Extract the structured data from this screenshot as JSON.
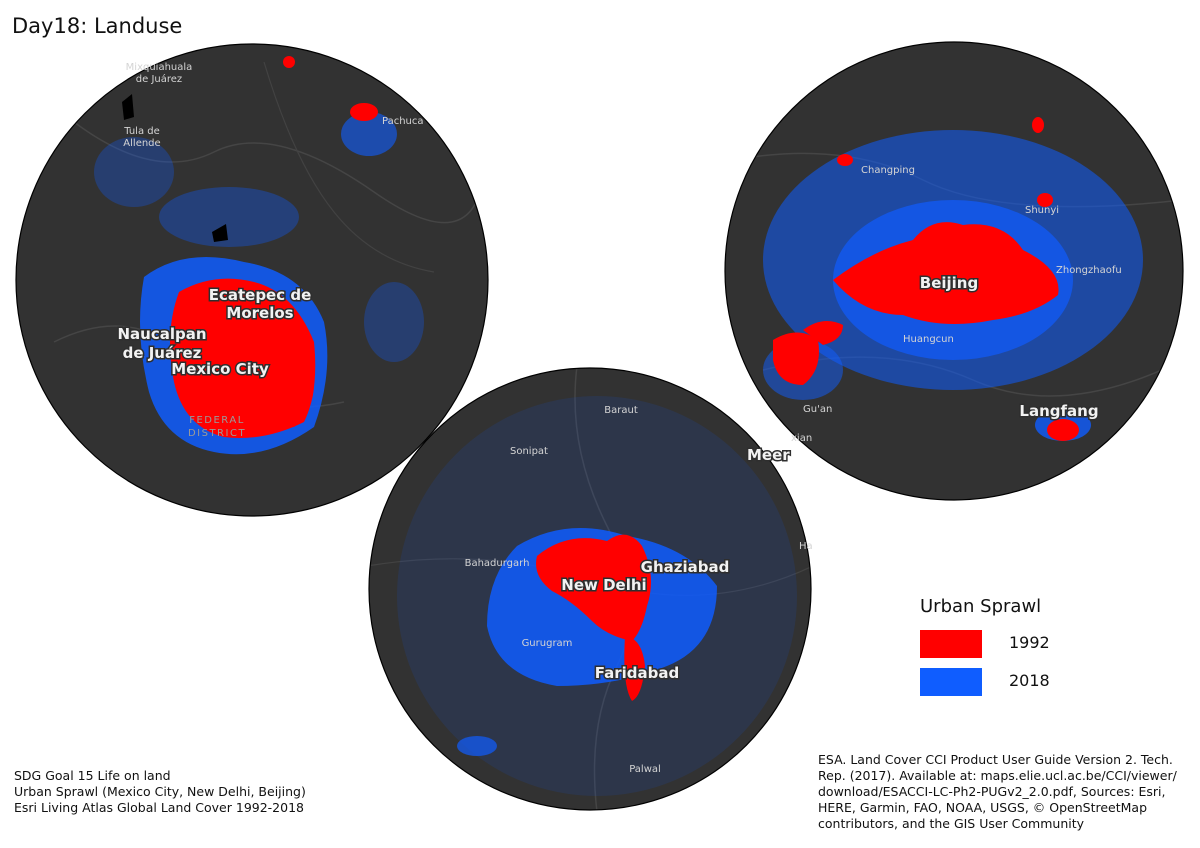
{
  "title": "Day18: Landuse",
  "colors": {
    "y1992": "#ff0000",
    "y2018": "#0f5dff",
    "basemap": "#323232",
    "border": "#000000"
  },
  "maps": {
    "mexico": {
      "labels": {
        "mixquiahuala_1": "Mixquiahuala",
        "mixquiahuala_2": "de Juárez",
        "tula_1": "Tula de",
        "tula_2": "Allende",
        "pachuca": "Pachuca",
        "ecatepec_1": "Ecatepec de",
        "ecatepec_2": "Morelos",
        "naucalpan_1": "Naucalpan",
        "naucalpan_2": "de Juárez",
        "mexico_city": "Mexico City",
        "federal_1": "FEDERAL",
        "federal_2": "DISTRICT"
      }
    },
    "beijing": {
      "labels": {
        "changping": "Changping",
        "shunyi": "Shunyi",
        "beijing": "Beijing",
        "zhongzhaofu": "Zhongzhaofu",
        "huangcun": "Huangcun",
        "guan": "Gu'an",
        "xian": "xian",
        "langfang": "Langfang"
      }
    },
    "delhi": {
      "labels": {
        "baraut": "Baraut",
        "sonipat": "Sonipat",
        "meer": "Meer",
        "bahadurgarh": "Bahadurgarh",
        "new_delhi": "New Delhi",
        "ghaziabad": "Ghaziabad",
        "hapur": "Hapur",
        "gurugram": "Gurugram",
        "faridabad": "Faridabad",
        "palwal": "Palwal"
      }
    }
  },
  "legend": {
    "title": "Urban Sprawl",
    "items": [
      {
        "label": "1992",
        "color": "#ff0000"
      },
      {
        "label": "2018",
        "color": "#0f5dff"
      }
    ]
  },
  "notes": [
    "SDG Goal 15 Life on land",
    "Urban Sprawl (Mexico City, New Delhi, Beijing)",
    "Esri Living Atlas Global Land Cover 1992-2018"
  ],
  "credits": "ESA. Land Cover CCI Product User Guide Version 2. Tech. Rep. (2017). Available at: maps.elie.ucl.ac.be/CCI/viewer/ download/ESACCI-LC-Ph2-PUGv2_2.0.pdf, Sources: Esri, HERE, Garmin, FAO, NOAA, USGS, © OpenStreetMap contributors, and the GIS User Community"
}
